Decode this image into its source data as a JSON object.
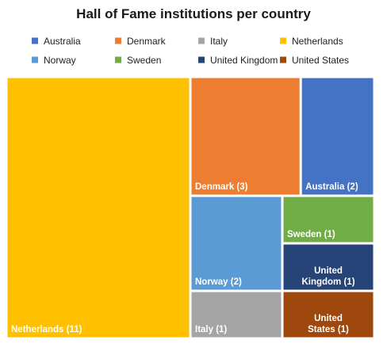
{
  "chart_data": {
    "type": "treemap",
    "title": "Hall of Fame institutions per country",
    "legend_position": "top",
    "series": [
      {
        "name": "Australia",
        "value": 2,
        "label": "Australia (2)",
        "color": "#4472C4"
      },
      {
        "name": "Denmark",
        "value": 3,
        "label": "Denmark (3)",
        "color": "#ED7D31"
      },
      {
        "name": "Italy",
        "value": 1,
        "label": "Italy (1)",
        "color": "#A5A5A5"
      },
      {
        "name": "Netherlands",
        "value": 11,
        "label": "Netherlands (11)",
        "color": "#FFC000"
      },
      {
        "name": "Norway",
        "value": 2,
        "label": "Norway (2)",
        "color": "#5B9BD5"
      },
      {
        "name": "Sweden",
        "value": 1,
        "label": "Sweden (1)",
        "color": "#70AD47"
      },
      {
        "name": "United Kingdom",
        "value": 1,
        "label": "United Kingdom (1)",
        "color": "#264478"
      },
      {
        "name": "United States",
        "value": 1,
        "label": "United States (1)",
        "color": "#9E480E"
      }
    ]
  }
}
